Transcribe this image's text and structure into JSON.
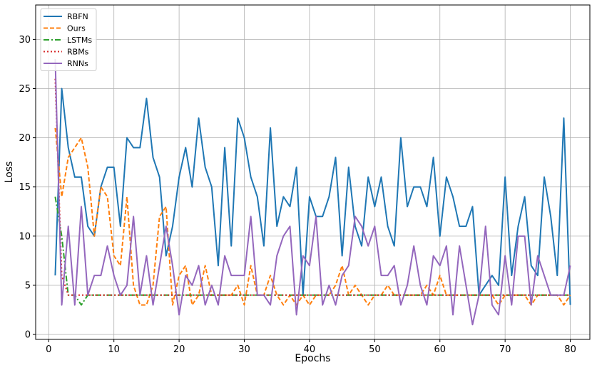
{
  "chart_data": {
    "type": "line",
    "xlabel": "Epochs",
    "ylabel": "Loss",
    "xlim": [
      -2,
      83
    ],
    "ylim": [
      -0.5,
      33.5
    ],
    "xticks": [
      0,
      10,
      20,
      30,
      40,
      50,
      60,
      70,
      80
    ],
    "yticks": [
      0,
      5,
      10,
      15,
      20,
      25,
      30
    ],
    "grid": true,
    "legend_position": "top-left",
    "x": [
      1,
      2,
      3,
      4,
      5,
      6,
      7,
      8,
      9,
      10,
      11,
      12,
      13,
      14,
      15,
      16,
      17,
      18,
      19,
      20,
      21,
      22,
      23,
      24,
      25,
      26,
      27,
      28,
      29,
      30,
      31,
      32,
      33,
      34,
      35,
      36,
      37,
      38,
      39,
      40,
      41,
      42,
      43,
      44,
      45,
      46,
      47,
      48,
      49,
      50,
      51,
      52,
      53,
      54,
      55,
      56,
      57,
      58,
      59,
      60,
      61,
      62,
      63,
      64,
      65,
      66,
      67,
      68,
      69,
      70,
      71,
      72,
      73,
      74,
      75,
      76,
      77,
      78,
      79,
      80
    ],
    "series": [
      {
        "name": "RBFN",
        "color": "#1f77b4",
        "dash": "solid",
        "values": [
          6,
          25,
          19,
          16,
          16,
          11,
          10,
          15,
          17,
          17,
          11,
          20,
          19,
          19,
          24,
          18,
          16,
          8,
          11,
          16,
          19,
          15,
          22,
          17,
          15,
          7,
          19,
          9,
          22,
          20,
          16,
          14,
          9,
          21,
          11,
          14,
          13,
          17,
          4,
          14,
          12,
          12,
          14,
          18,
          8,
          17,
          11,
          9,
          16,
          13,
          16,
          11,
          9,
          20,
          13,
          15,
          15,
          13,
          18,
          10,
          16,
          14,
          11,
          11,
          13,
          4,
          5,
          6,
          5,
          16,
          6,
          11,
          14,
          7,
          6,
          16,
          12,
          6,
          22,
          3
        ]
      },
      {
        "name": "Ours",
        "color": "#ff7f0e",
        "dash": "dashed",
        "values": [
          21,
          14,
          18,
          19,
          20,
          17,
          10,
          15,
          14,
          8,
          7,
          14,
          5,
          3,
          3,
          5,
          12,
          13,
          3,
          6,
          7,
          3,
          4,
          7,
          4,
          4,
          4,
          4,
          5,
          3,
          7,
          4,
          4,
          6,
          4,
          3,
          4,
          3,
          4,
          3,
          4,
          4,
          4,
          5,
          7,
          4,
          5,
          4,
          3,
          4,
          4,
          5,
          4,
          4,
          4,
          4,
          4,
          5,
          4,
          6,
          4,
          4,
          4,
          4,
          4,
          4,
          4,
          4,
          3,
          4,
          4,
          4,
          4,
          3,
          4,
          4,
          4,
          4,
          3,
          4
        ]
      },
      {
        "name": "LSTMs",
        "color": "#2ca02c",
        "dash": "dashdot",
        "values": [
          14,
          10,
          4,
          4,
          3,
          4,
          4,
          4,
          4,
          4,
          4,
          4,
          4,
          4,
          4,
          4,
          4,
          4,
          4,
          4,
          4,
          4,
          4,
          4,
          4,
          4,
          4,
          4,
          4,
          4,
          4,
          4,
          4,
          4,
          4,
          4,
          4,
          4,
          4,
          4,
          4,
          4,
          4,
          4,
          4,
          4,
          4,
          4,
          4,
          4,
          4,
          4,
          4,
          4,
          4,
          4,
          4,
          4,
          4,
          4,
          4,
          4,
          4,
          4,
          4,
          4,
          4,
          4,
          4,
          4,
          4,
          4,
          4,
          4,
          4,
          4,
          4,
          4,
          4,
          4
        ]
      },
      {
        "name": "RBMs",
        "color": "#d62728",
        "dash": "dotted",
        "values": [
          26,
          6,
          4,
          4,
          4,
          4,
          4,
          4,
          4,
          4,
          4,
          4,
          4,
          4,
          4,
          4,
          4,
          4,
          4,
          4,
          4,
          4,
          4,
          4,
          4,
          4,
          4,
          4,
          4,
          4,
          4,
          4,
          4,
          4,
          4,
          4,
          4,
          4,
          4,
          4,
          4,
          4,
          4,
          4,
          4,
          4,
          4,
          4,
          4,
          4,
          4,
          4,
          4,
          4,
          4,
          4,
          4,
          4,
          4,
          4,
          4,
          4,
          4,
          4,
          4,
          4,
          4,
          4,
          4,
          4,
          4,
          4,
          4,
          4,
          4,
          4,
          4,
          4,
          4,
          4
        ]
      },
      {
        "name": "RNNs",
        "color": "#9467bd",
        "dash": "solid",
        "values": [
          28,
          3,
          11,
          3,
          13,
          4,
          6,
          6,
          9,
          6,
          4,
          5,
          12,
          4,
          8,
          3,
          7,
          11,
          7,
          2,
          6,
          5,
          7,
          3,
          5,
          3,
          8,
          6,
          6,
          6,
          12,
          4,
          4,
          3,
          8,
          10,
          11,
          2,
          8,
          7,
          12,
          3,
          5,
          3,
          6,
          7,
          12,
          11,
          9,
          11,
          6,
          6,
          7,
          3,
          5,
          9,
          5,
          3,
          8,
          7,
          9,
          2,
          9,
          5,
          1,
          4,
          11,
          3,
          2,
          8,
          3,
          10,
          10,
          3,
          8,
          6,
          4,
          4,
          4,
          7
        ]
      }
    ]
  }
}
